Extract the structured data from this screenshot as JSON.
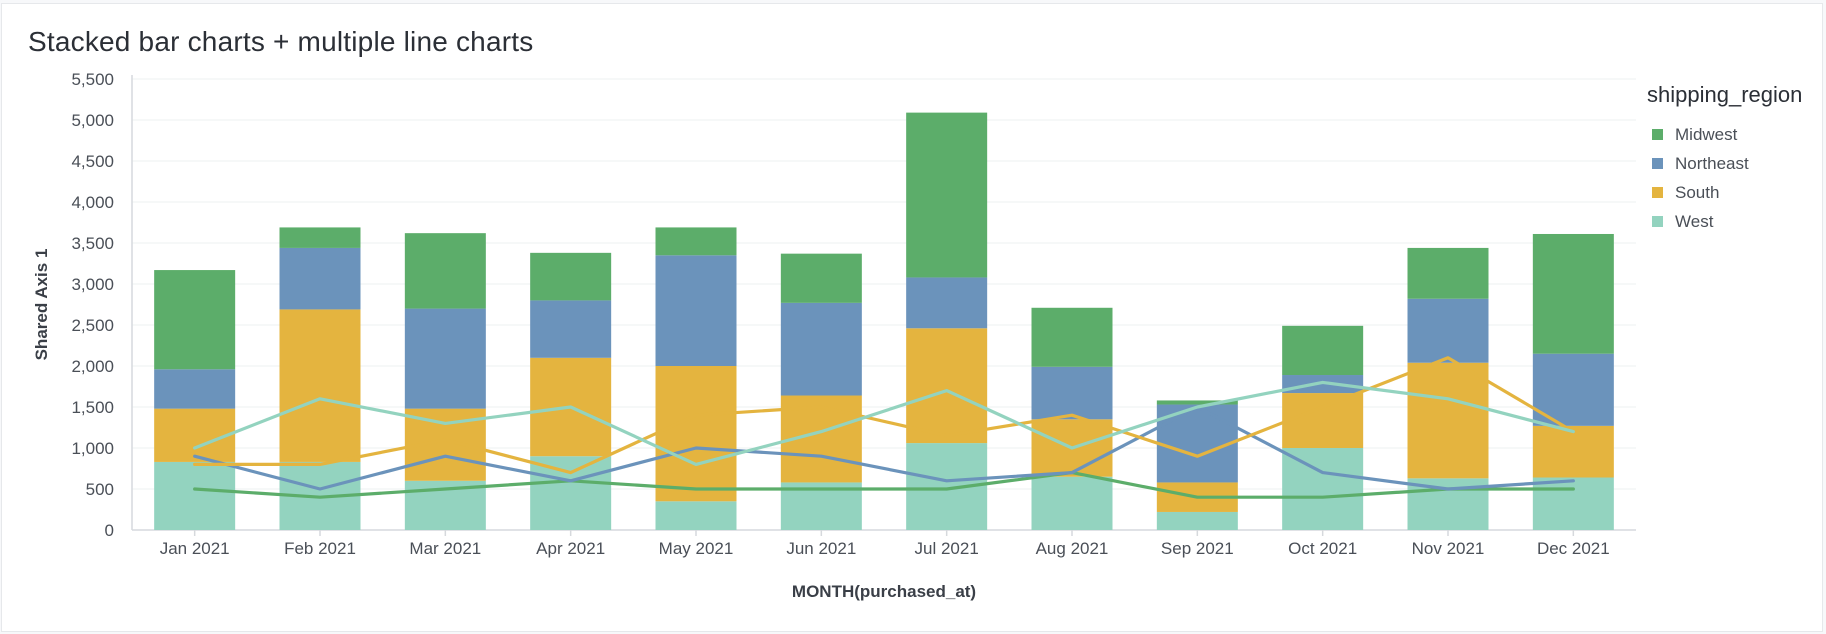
{
  "chart_data": {
    "type": "bar",
    "title": "Stacked bar charts + multiple line charts",
    "xlabel": "MONTH(purchased_at)",
    "ylabel": "Shared Axis 1",
    "ylim": [
      0,
      5500
    ],
    "yticks": [
      0,
      500,
      1000,
      1500,
      2000,
      2500,
      3000,
      3500,
      4000,
      4500,
      5000,
      5500
    ],
    "ytick_labels": [
      "0",
      "500",
      "1,000",
      "1,500",
      "2,000",
      "2,500",
      "3,000",
      "3,500",
      "4,000",
      "4,500",
      "5,000",
      "5,500"
    ],
    "categories": [
      "Jan 2021",
      "Feb 2021",
      "Mar 2021",
      "Apr 2021",
      "May 2021",
      "Jun 2021",
      "Jul 2021",
      "Aug 2021",
      "Sep 2021",
      "Oct 2021",
      "Nov 2021",
      "Dec 2021"
    ],
    "legend_title": "shipping_region",
    "legend_position": "right",
    "grid": true,
    "bar_series": [
      {
        "name": "West",
        "color": "#93d3bf",
        "values": [
          830,
          830,
          600,
          900,
          350,
          580,
          1060,
          650,
          220,
          1000,
          630,
          640
        ]
      },
      {
        "name": "South",
        "color": "#e4b43f",
        "values": [
          650,
          1860,
          880,
          1200,
          1650,
          1060,
          1400,
          700,
          360,
          670,
          1410,
          630
        ]
      },
      {
        "name": "Northeast",
        "color": "#6b93bb",
        "values": [
          480,
          750,
          1220,
          700,
          1350,
          1130,
          620,
          640,
          950,
          220,
          780,
          880
        ]
      },
      {
        "name": "Midwest",
        "color": "#5cad6a",
        "values": [
          1210,
          250,
          920,
          580,
          340,
          600,
          2010,
          720,
          50,
          600,
          620,
          1460
        ]
      }
    ],
    "line_series": [
      {
        "name": "Midwest",
        "color": "#5cad6a",
        "values": [
          500,
          400,
          500,
          600,
          500,
          500,
          500,
          700,
          400,
          400,
          500,
          500
        ]
      },
      {
        "name": "Northeast",
        "color": "#6b93bb",
        "values": [
          900,
          500,
          900,
          600,
          1000,
          900,
          600,
          700,
          1500,
          700,
          500,
          600
        ]
      },
      {
        "name": "South",
        "color": "#e4b43f",
        "values": [
          800,
          800,
          1100,
          700,
          1400,
          1500,
          1150,
          1400,
          900,
          1500,
          2100,
          1200
        ]
      },
      {
        "name": "West",
        "color": "#93d3bf",
        "values": [
          1000,
          1600,
          1300,
          1500,
          800,
          1200,
          1700,
          1000,
          1500,
          1800,
          1600,
          1200
        ]
      }
    ],
    "legend": [
      {
        "name": "Midwest",
        "color": "#5cad6a"
      },
      {
        "name": "Northeast",
        "color": "#6b93bb"
      },
      {
        "name": "South",
        "color": "#e4b43f"
      },
      {
        "name": "West",
        "color": "#93d3bf"
      }
    ]
  }
}
